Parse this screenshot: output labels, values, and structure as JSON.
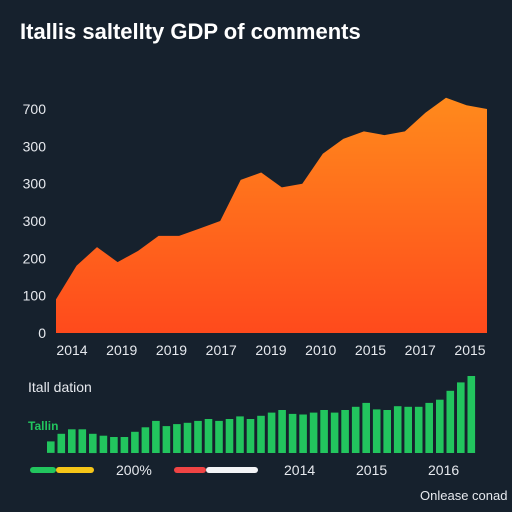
{
  "colors": {
    "background": "#16212d",
    "area_top": "#ff8a1c",
    "area_bottom": "#ff4a1c",
    "bar": "#22c55e",
    "text": "#e6e9ee",
    "green_text": "#22c55e",
    "legend_yellow": "#f5c518",
    "legend_red": "#ef4444",
    "legend_white": "#f3f4f6"
  },
  "chart_data": [
    {
      "type": "area",
      "title": "Itallis saltellty GDP of comments",
      "xlabel": "",
      "ylabel": "",
      "ytick_labels": [
        "0",
        "100",
        "200",
        "300",
        "300",
        "300",
        "700"
      ],
      "xtick_labels": [
        "2014",
        "2019",
        "2019",
        "2017",
        "2019",
        "2010",
        "2015",
        "2017",
        "2015"
      ],
      "ylim": [
        0,
        6
      ],
      "x": [
        0,
        1,
        2,
        3,
        4,
        5,
        6,
        7,
        8,
        9,
        10,
        11,
        12,
        13,
        14,
        15,
        16,
        17,
        18,
        19,
        20,
        21
      ],
      "values": [
        0.9,
        1.8,
        2.3,
        1.9,
        2.2,
        2.6,
        2.6,
        2.8,
        3.0,
        4.1,
        4.3,
        3.9,
        4.0,
        4.8,
        5.2,
        5.4,
        5.3,
        5.4,
        5.9,
        6.3,
        6.1,
        6.0
      ],
      "grid": false,
      "legend": "none"
    },
    {
      "type": "bar",
      "title": "Itall dation",
      "label": "Tallin",
      "values": [
        0.18,
        0.3,
        0.37,
        0.37,
        0.3,
        0.27,
        0.25,
        0.25,
        0.33,
        0.4,
        0.5,
        0.42,
        0.45,
        0.47,
        0.5,
        0.53,
        0.5,
        0.53,
        0.57,
        0.53,
        0.58,
        0.63,
        0.67,
        0.61,
        0.6,
        0.63,
        0.67,
        0.63,
        0.67,
        0.72,
        0.78,
        0.68,
        0.67,
        0.73,
        0.72,
        0.72,
        0.78,
        0.83,
        0.97,
        1.1,
        1.2
      ],
      "ylim": [
        0,
        1.2
      ],
      "legend_items": [
        {
          "label": "200%",
          "colors": [
            "#22c55e",
            "#f5c518"
          ]
        },
        {
          "label": "2014",
          "colors": [
            "#ef4444",
            "#f3f4f6"
          ]
        }
      ],
      "xtick_labels": [
        "2015",
        "2016"
      ]
    }
  ],
  "footer_text": "Onlease conad"
}
